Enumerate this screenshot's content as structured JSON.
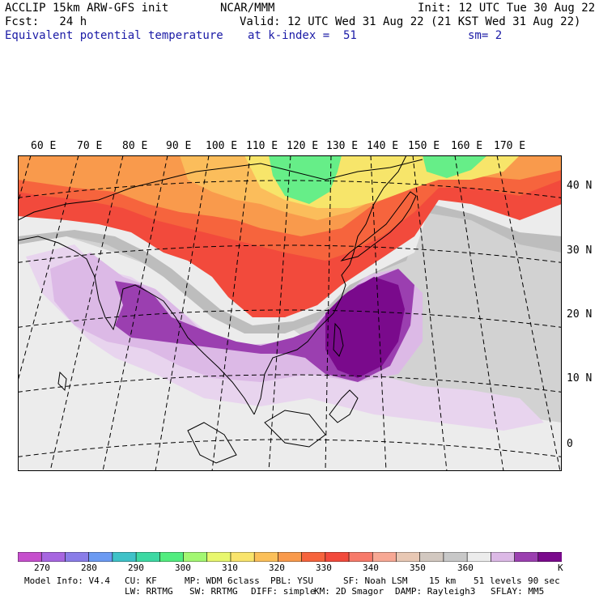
{
  "header": {
    "line1_left": "ACCLIP 15km ARW-GFS init",
    "line1_center": "NCAR/MMM",
    "line1_right": "Init: 12 UTC Tue 30 Aug 22",
    "line2_left": "Fcst:   24 h",
    "line2_right": "Valid: 12 UTC Wed 31 Aug 22 (21 KST Wed 31 Aug 22)",
    "line3_left": "Equivalent potential temperature",
    "line3_center": "at k-index =  51",
    "line3_right": "sm= 2"
  },
  "map": {
    "lon_labels": [
      "60 E",
      "70 E",
      "80 E",
      "90 E",
      "100 E",
      "110 E",
      "120 E",
      "130 E",
      "140 E",
      "150 E",
      "160 E",
      "170 E"
    ],
    "lat_labels": [
      "40 N",
      "30 N",
      "20 N",
      "10 N",
      "0"
    ],
    "colors": {
      "purple_dark": "#7a0a8c",
      "purple": "#9b3fb0",
      "lilac": "#dcb9e6",
      "lilac_light": "#e8d4ee",
      "white_gray": "#ececec",
      "gray_light": "#d2d2d2",
      "gray": "#bdbdbd",
      "red": "#f24a3c",
      "red_orange": "#f6643d",
      "orange": "#f99a4c",
      "orange_light": "#fbbd5b",
      "yellow": "#f7e56a",
      "green": "#66ee88"
    }
  },
  "colorbar": {
    "unit": "K",
    "colors": [
      "#c64fcd",
      "#a766e0",
      "#8a7de8",
      "#6b9af2",
      "#3fc2c8",
      "#3dd9a3",
      "#52ed7f",
      "#a3f772",
      "#e8f76e",
      "#f9e46c",
      "#fbc05a",
      "#f99a4c",
      "#f6643d",
      "#f24a3c",
      "#f77a6a",
      "#f7a894",
      "#e8c8b4",
      "#d2c8c0",
      "#c8c8c8",
      "#ececec",
      "#dcb9e6",
      "#9b3fb0",
      "#7a0a8c"
    ],
    "labels": [
      "270",
      "280",
      "290",
      "300",
      "310",
      "320",
      "330",
      "340",
      "350",
      "360"
    ]
  },
  "footer": {
    "row1": [
      "Model Info: V4.4",
      "CU: KF",
      "MP: WDM 6class",
      "PBL: YSU",
      "SF: Noah LSM",
      "15 km",
      "51 levels",
      "90 sec"
    ],
    "row2": [
      "LW: RRTMG",
      "SW: RRTMG",
      "DIFF: simple",
      "KM: 2D Smagor",
      "DAMP: Rayleigh3",
      "SFLAY: MM5"
    ]
  }
}
